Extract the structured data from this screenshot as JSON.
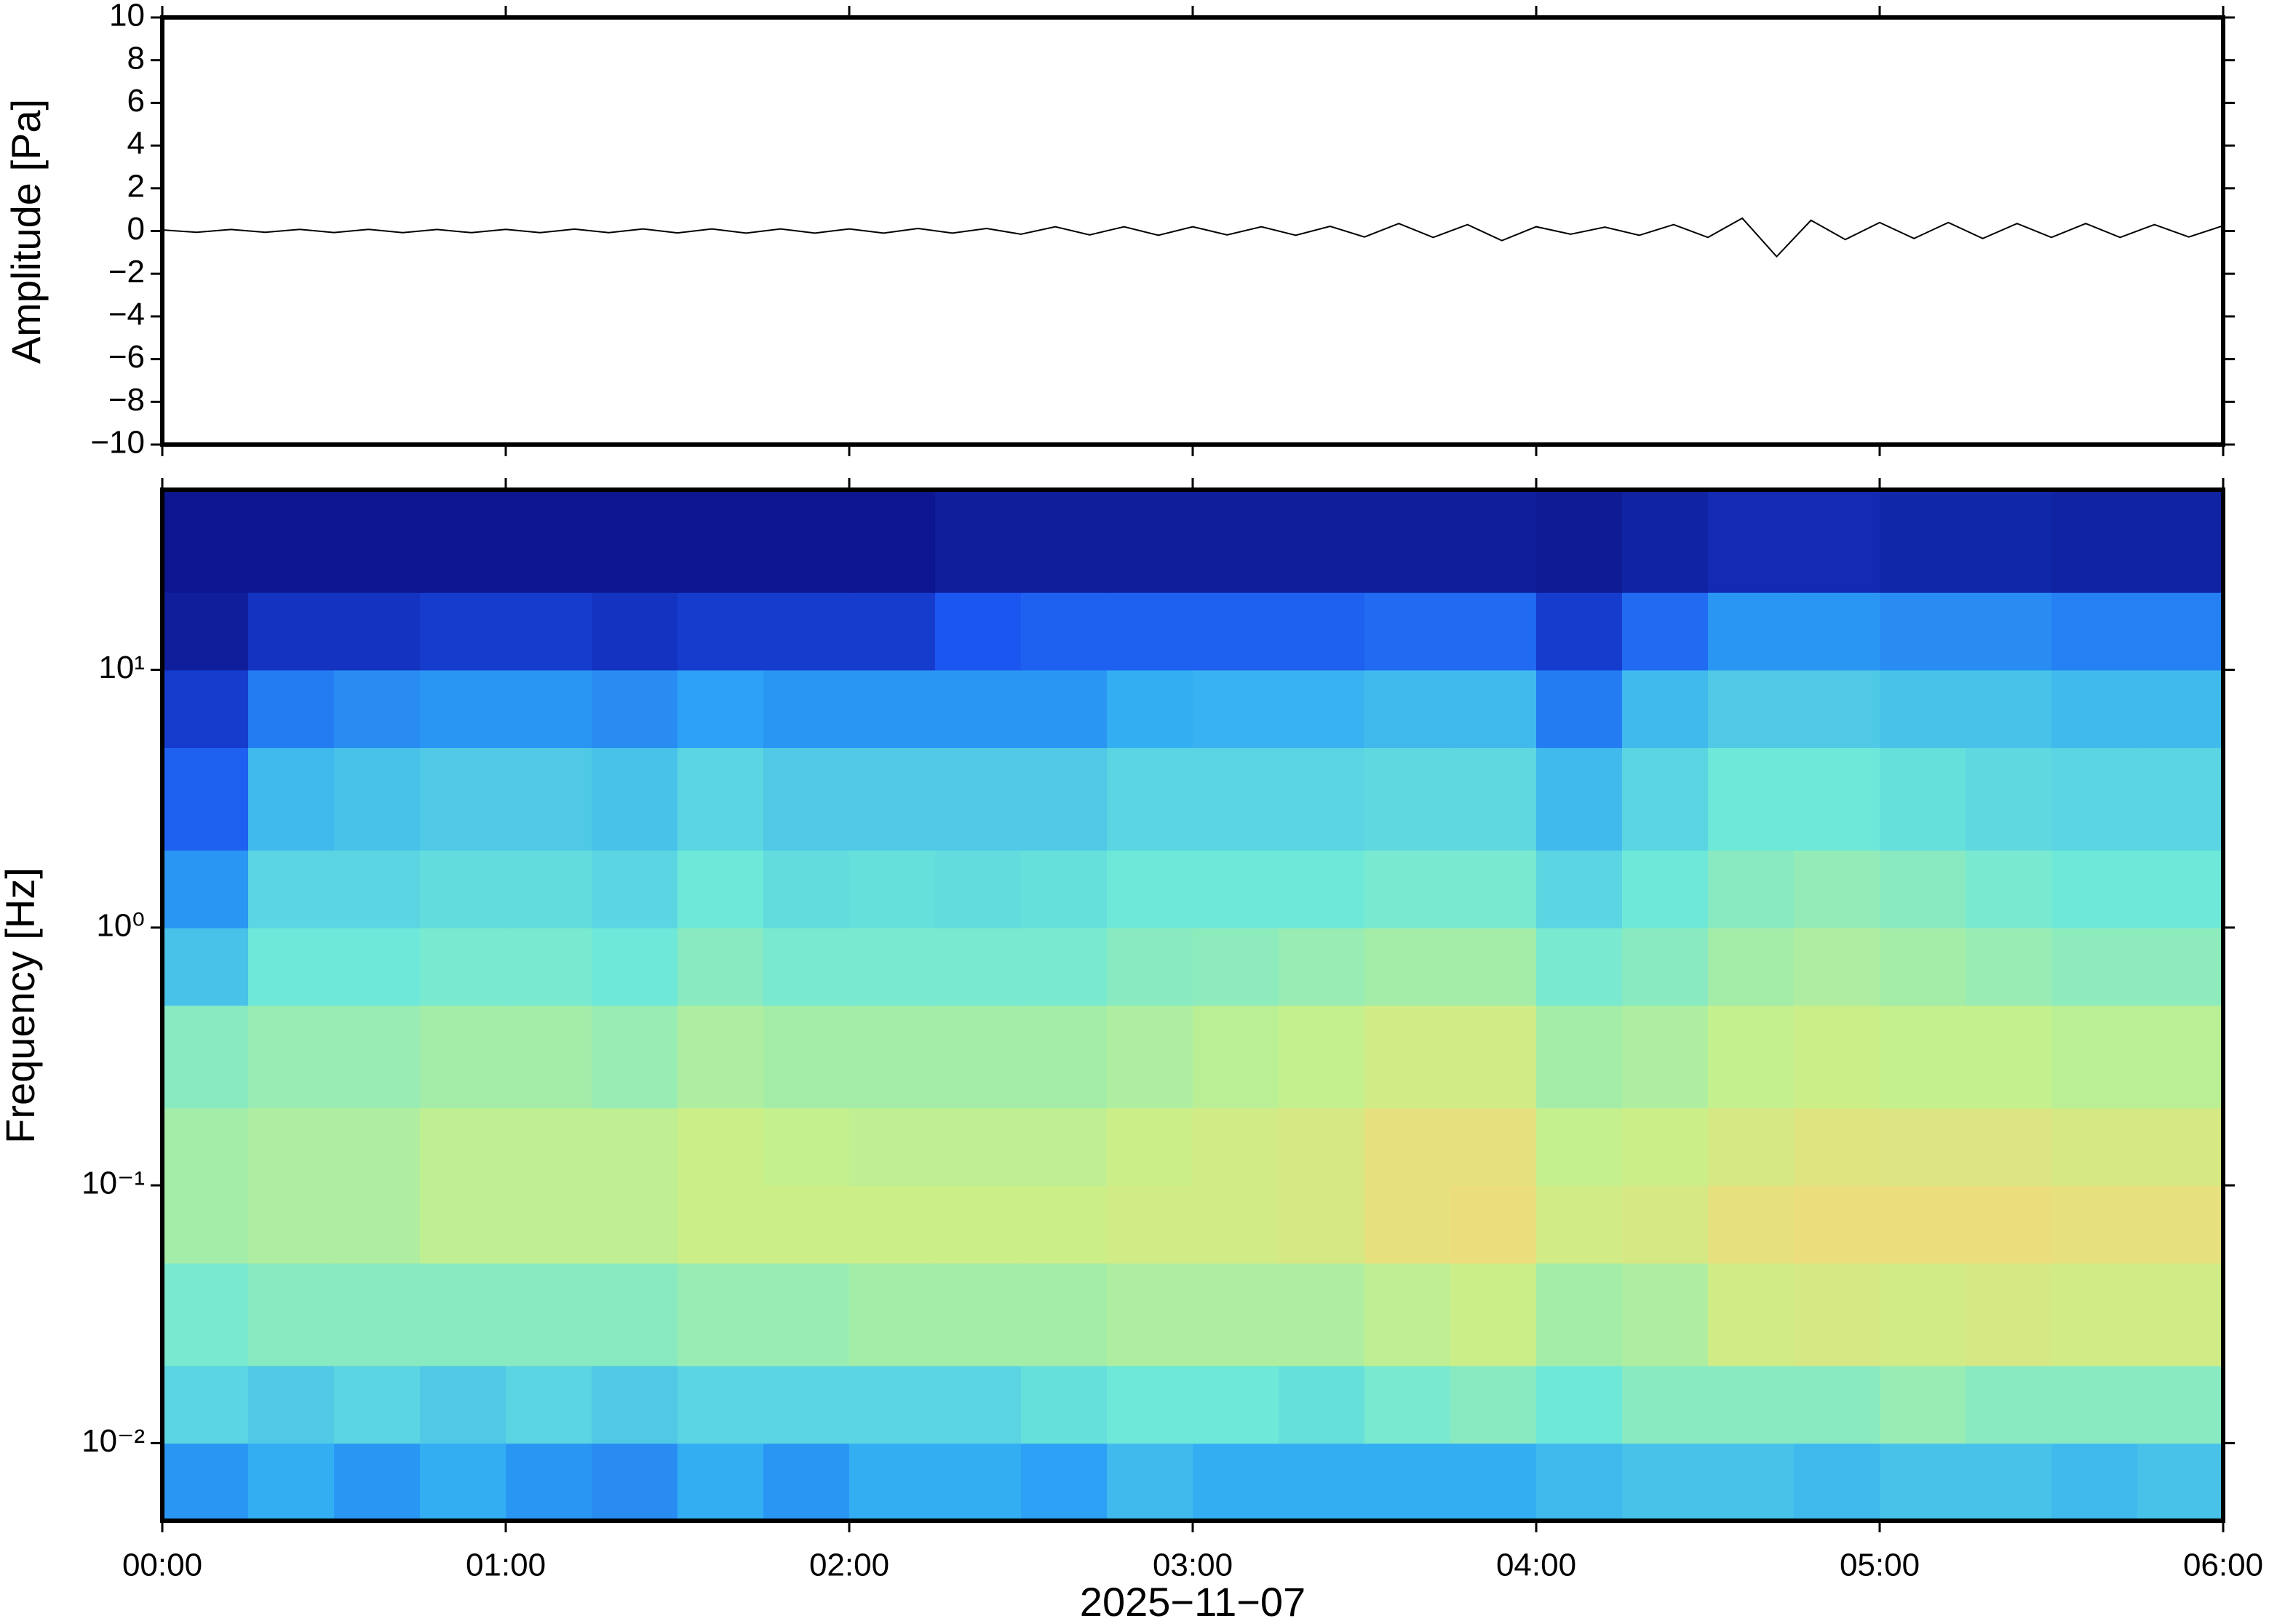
{
  "chart_data": [
    {
      "type": "line",
      "ylabel": "Amplitude [Pa]",
      "color": "#000000",
      "xlim": [
        0,
        6
      ],
      "xticks": [
        0,
        1,
        2,
        3,
        4,
        5,
        6
      ],
      "ylim": [
        -10,
        10
      ],
      "yticks": [
        {
          "value": -10,
          "label": "−10"
        },
        {
          "value": -8,
          "label": "−8"
        },
        {
          "value": -6,
          "label": "−6"
        },
        {
          "value": -4,
          "label": "−4"
        },
        {
          "value": -2,
          "label": "−2"
        },
        0,
        2,
        4,
        6,
        8,
        10
      ],
      "x": [
        0,
        0.1,
        0.2,
        0.3,
        0.4,
        0.5,
        0.6,
        0.7,
        0.8,
        0.9,
        1,
        1.1,
        1.2,
        1.3,
        1.4,
        1.5,
        1.6,
        1.7,
        1.8,
        1.9,
        2,
        2.1,
        2.2,
        2.3,
        2.4,
        2.5,
        2.6,
        2.7,
        2.8,
        2.9,
        3,
        3.1,
        3.2,
        3.3,
        3.4,
        3.5,
        3.6,
        3.7,
        3.8,
        3.9,
        4,
        4.1,
        4.2,
        4.3,
        4.4,
        4.5,
        4.6,
        4.7,
        4.8,
        4.9,
        5,
        5.1,
        5.2,
        5.3,
        5.4,
        5.5,
        5.6,
        5.7,
        5.8,
        5.9,
        6
      ],
      "values": [
        0.05,
        -0.06,
        0.07,
        -0.06,
        0.08,
        -0.07,
        0.08,
        -0.08,
        0.07,
        -0.08,
        0.08,
        -0.08,
        0.09,
        -0.08,
        0.1,
        -0.09,
        0.1,
        -0.1,
        0.1,
        -0.1,
        0.1,
        -0.1,
        0.12,
        -0.1,
        0.12,
        -0.15,
        0.2,
        -0.18,
        0.2,
        -0.2,
        0.2,
        -0.18,
        0.2,
        -0.2,
        0.22,
        -0.28,
        0.35,
        -0.3,
        0.3,
        -0.45,
        0.2,
        -0.15,
        0.18,
        -0.2,
        0.3,
        -0.3,
        0.6,
        -1.2,
        0.5,
        -0.4,
        0.4,
        -0.35,
        0.4,
        -0.35,
        0.35,
        -0.3,
        0.35,
        -0.3,
        0.3,
        -0.28,
        0.25
      ]
    },
    {
      "type": "heatmap",
      "ylabel": "Frequency [Hz]",
      "xlabel": "2025−11−07",
      "log_y": true,
      "xlim": [
        0,
        6
      ],
      "xticks": [
        {
          "value": 0,
          "label": "00:00"
        },
        {
          "value": 1,
          "label": "01:00"
        },
        {
          "value": 2,
          "label": "02:00"
        },
        {
          "value": 3,
          "label": "03:00"
        },
        {
          "value": 4,
          "label": "04:00"
        },
        {
          "value": 5,
          "label": "05:00"
        },
        {
          "value": 6,
          "label": "06:00"
        }
      ],
      "ylim": [
        0.005,
        50
      ],
      "yticks": [
        {
          "value": 0.01,
          "label": "10⁻²"
        },
        {
          "value": 0.1,
          "label": "10⁻¹"
        },
        {
          "value": 1,
          "label": "10⁰"
        },
        {
          "value": 10,
          "label": "10¹"
        }
      ],
      "x_bins": [
        0,
        0.25,
        0.5,
        0.75,
        1,
        1.25,
        1.5,
        1.75,
        2,
        2.25,
        2.5,
        2.75,
        3,
        3.25,
        3.5,
        3.75,
        4,
        4.25,
        4.5,
        4.75,
        5,
        5.25,
        5.5,
        5.75,
        6
      ],
      "y_bins": [
        0.005,
        0.01,
        0.02,
        0.05,
        0.1,
        0.2,
        0.5,
        1,
        2,
        5,
        10,
        20,
        50
      ],
      "zlim": [
        0,
        1
      ],
      "colors": [
        "#0a0a78",
        "#1a4ff0",
        "#2ea8f5",
        "#6ee8d8",
        "#c8f08a",
        "#f5d878",
        "#f59a4a"
      ],
      "values": [
        [
          0.3,
          0.35,
          0.3,
          0.35,
          0.3,
          0.28,
          0.35,
          0.3,
          0.35,
          0.35,
          0.32,
          0.38,
          0.35,
          0.35,
          0.35,
          0.35,
          0.38,
          0.4,
          0.4,
          0.38,
          0.4,
          0.4,
          0.38,
          0.4
        ],
        [
          0.45,
          0.42,
          0.45,
          0.42,
          0.45,
          0.42,
          0.45,
          0.45,
          0.45,
          0.45,
          0.48,
          0.5,
          0.5,
          0.48,
          0.52,
          0.55,
          0.5,
          0.55,
          0.55,
          0.55,
          0.58,
          0.55,
          0.55,
          0.55
        ],
        [
          0.52,
          0.55,
          0.55,
          0.55,
          0.55,
          0.55,
          0.58,
          0.58,
          0.6,
          0.6,
          0.6,
          0.62,
          0.62,
          0.62,
          0.65,
          0.68,
          0.6,
          0.62,
          0.7,
          0.72,
          0.7,
          0.72,
          0.7,
          0.7
        ],
        [
          0.6,
          0.62,
          0.62,
          0.65,
          0.65,
          0.65,
          0.68,
          0.68,
          0.68,
          0.68,
          0.68,
          0.7,
          0.7,
          0.72,
          0.78,
          0.8,
          0.7,
          0.72,
          0.78,
          0.8,
          0.8,
          0.8,
          0.78,
          0.78
        ],
        [
          0.6,
          0.62,
          0.62,
          0.65,
          0.65,
          0.65,
          0.68,
          0.66,
          0.65,
          0.65,
          0.65,
          0.68,
          0.7,
          0.72,
          0.78,
          0.78,
          0.66,
          0.68,
          0.72,
          0.75,
          0.74,
          0.74,
          0.72,
          0.72
        ],
        [
          0.55,
          0.58,
          0.58,
          0.6,
          0.6,
          0.58,
          0.62,
          0.6,
          0.6,
          0.6,
          0.6,
          0.62,
          0.64,
          0.66,
          0.7,
          0.7,
          0.6,
          0.62,
          0.66,
          0.68,
          0.66,
          0.66,
          0.64,
          0.64
        ],
        [
          0.4,
          0.5,
          0.5,
          0.52,
          0.52,
          0.5,
          0.55,
          0.52,
          0.52,
          0.52,
          0.52,
          0.55,
          0.56,
          0.58,
          0.6,
          0.6,
          0.52,
          0.55,
          0.6,
          0.62,
          0.6,
          0.58,
          0.56,
          0.56
        ],
        [
          0.3,
          0.45,
          0.45,
          0.47,
          0.47,
          0.45,
          0.5,
          0.47,
          0.48,
          0.47,
          0.48,
          0.5,
          0.5,
          0.5,
          0.52,
          0.52,
          0.45,
          0.5,
          0.55,
          0.57,
          0.55,
          0.52,
          0.5,
          0.5
        ],
        [
          0.2,
          0.38,
          0.4,
          0.42,
          0.42,
          0.4,
          0.45,
          0.42,
          0.42,
          0.42,
          0.42,
          0.45,
          0.45,
          0.45,
          0.46,
          0.46,
          0.38,
          0.45,
          0.5,
          0.5,
          0.48,
          0.46,
          0.45,
          0.45
        ],
        [
          0.12,
          0.25,
          0.28,
          0.3,
          0.3,
          0.28,
          0.32,
          0.3,
          0.3,
          0.3,
          0.3,
          0.35,
          0.36,
          0.36,
          0.38,
          0.38,
          0.25,
          0.38,
          0.42,
          0.42,
          0.4,
          0.4,
          0.38,
          0.38
        ],
        [
          0.05,
          0.1,
          0.1,
          0.12,
          0.12,
          0.1,
          0.12,
          0.12,
          0.12,
          0.18,
          0.2,
          0.2,
          0.2,
          0.2,
          0.22,
          0.22,
          0.12,
          0.22,
          0.3,
          0.3,
          0.28,
          0.28,
          0.26,
          0.26
        ],
        [
          0.03,
          0.03,
          0.03,
          0.03,
          0.03,
          0.03,
          0.03,
          0.03,
          0.03,
          0.05,
          0.05,
          0.05,
          0.05,
          0.05,
          0.05,
          0.05,
          0.04,
          0.06,
          0.08,
          0.08,
          0.07,
          0.07,
          0.06,
          0.06
        ]
      ]
    }
  ]
}
